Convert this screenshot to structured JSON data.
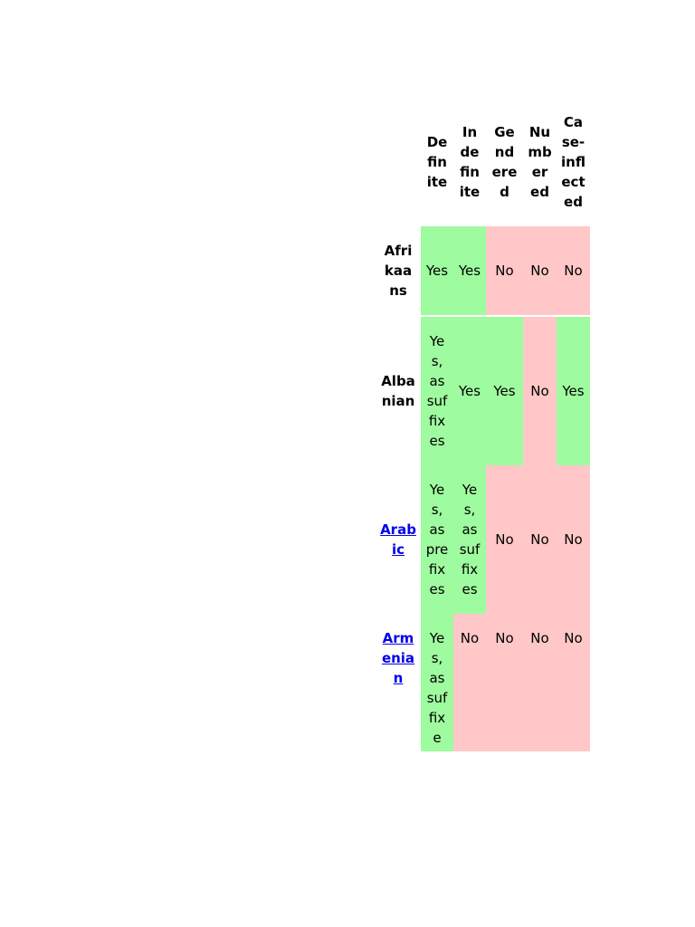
{
  "table": {
    "header": [
      "Definite",
      "Indefinite",
      "Gendered",
      "Numbered",
      "Case-inflected"
    ],
    "rows": [
      {
        "label": "Afrikaans",
        "cells": [
          "Yes",
          "Yes",
          "No",
          "No",
          "No"
        ]
      },
      {
        "label": "Albanian",
        "cells": [
          "Yes, as suffixes",
          "Yes",
          "Yes",
          "No",
          "Yes"
        ]
      },
      {
        "label": "Arabic",
        "cells": [
          "Yes, as prefixes",
          "Yes, as suffixes",
          "No",
          "No",
          "No"
        ]
      },
      {
        "label": "Armenian",
        "cells": [
          "Yes, as suffixe",
          "No",
          "No",
          "No",
          "No"
        ]
      }
    ]
  }
}
